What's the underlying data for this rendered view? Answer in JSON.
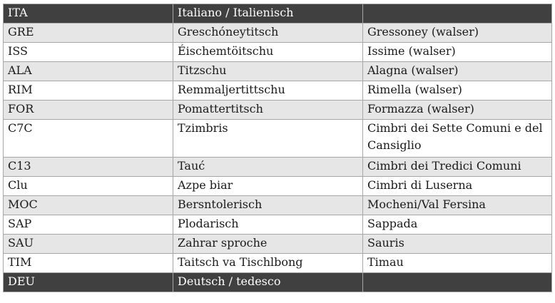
{
  "table": {
    "rows": [
      {
        "code": "ITA",
        "name": "Italiano / Italienisch",
        "place": "",
        "style": "dark"
      },
      {
        "code": "GRE",
        "name": "Greschóneytitsch",
        "place": "Gressoney (walser)",
        "style": "shade"
      },
      {
        "code": "ISS",
        "name": "Éischemtöitschu",
        "place": "Issime (walser)",
        "style": "plain"
      },
      {
        "code": "ALA",
        "name": "Titzschu",
        "place": "Alagna (walser)",
        "style": "shade"
      },
      {
        "code": "RIM",
        "name": "Remmaljertittschu",
        "place": "Rimella (walser)",
        "style": "plain"
      },
      {
        "code": "FOR",
        "name": "Pomattertitsch",
        "place": "Formazza (walser)",
        "style": "shade"
      },
      {
        "code": "C7C",
        "name": "Tzimbris",
        "place": "Cimbri dei Sette Comuni e del Cansiglio",
        "style": "plain",
        "tall": true
      },
      {
        "code": "C13",
        "name": "Tauć",
        "place": "Cimbri dei Tredici Comuni",
        "style": "shade"
      },
      {
        "code": "Clu",
        "name": "Azpe biar",
        "place": "Cimbri di Luserna",
        "style": "plain"
      },
      {
        "code": "MOC",
        "name": "Bersntolerisch",
        "place": "Mocheni/Val Fersina",
        "style": "shade"
      },
      {
        "code": "SAP",
        "name": "Plodarisch",
        "place": "Sappada",
        "style": "plain"
      },
      {
        "code": "SAU",
        "name": "Zahrar sproche",
        "place": "Sauris",
        "style": "shade"
      },
      {
        "code": "TIM",
        "name": "Taitsch va Tischlbong",
        "place": "Timau",
        "style": "plain"
      },
      {
        "code": "DEU",
        "name": "Deutsch / tedesco",
        "place": "",
        "style": "dark"
      }
    ]
  }
}
